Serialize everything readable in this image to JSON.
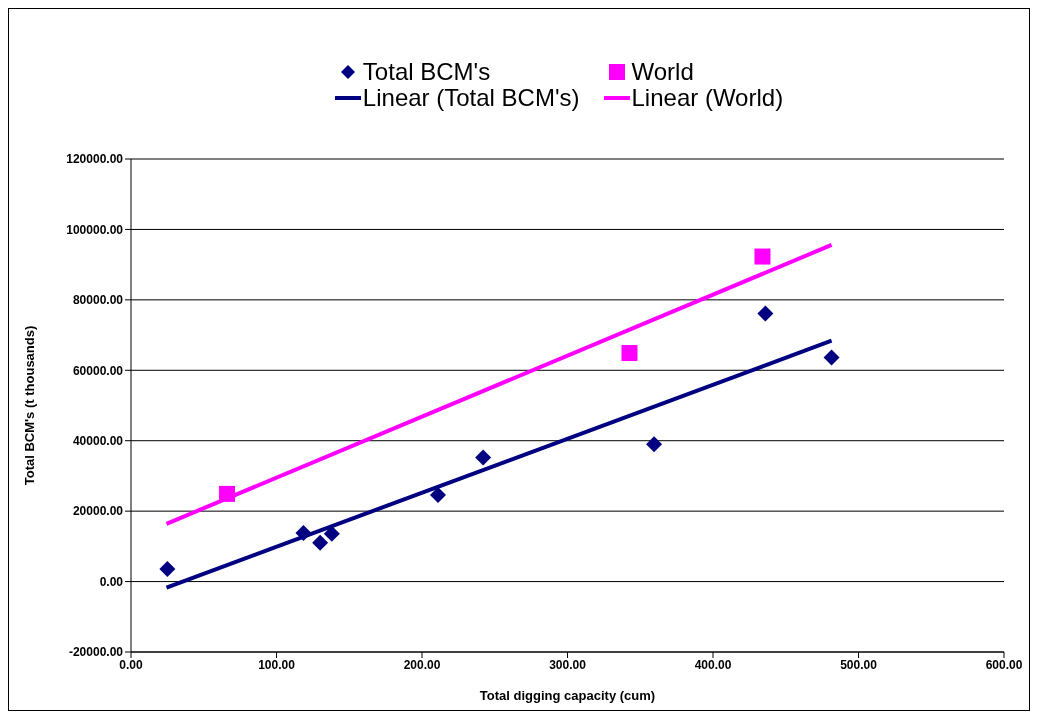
{
  "chart_data": {
    "type": "scatter",
    "xlabel": "Total digging capacity (cum)",
    "ylabel": "Total BCM's (t thousands)",
    "xlim": [
      0,
      600
    ],
    "ylim": [
      -20000,
      120000
    ],
    "xticks": [
      {
        "value": 0,
        "label": "0.00"
      },
      {
        "value": 100,
        "label": "100.00"
      },
      {
        "value": 200,
        "label": "200.00"
      },
      {
        "value": 300,
        "label": "300.00"
      },
      {
        "value": 400,
        "label": "400.00"
      },
      {
        "value": 500,
        "label": "500.00"
      },
      {
        "value": 600,
        "label": "600.00"
      }
    ],
    "yticks": [
      {
        "value": -20000,
        "label": "-20000.00"
      },
      {
        "value": 0,
        "label": "0.00"
      },
      {
        "value": 20000,
        "label": "20000.00"
      },
      {
        "value": 40000,
        "label": "40000.00"
      },
      {
        "value": 60000,
        "label": "60000.00"
      },
      {
        "value": 80000,
        "label": "80000.00"
      },
      {
        "value": 100000,
        "label": "100000.00"
      },
      {
        "value": 120000,
        "label": "120000.00"
      }
    ],
    "grid": "y",
    "legend": "top",
    "series": [
      {
        "name": "Total BCM's",
        "marker": "diamond",
        "color": "#000080",
        "x": [
          25,
          118.5,
          130,
          138,
          211,
          242,
          359.5,
          436,
          481.5
        ],
        "values": [
          3600,
          13800,
          11000,
          13600,
          24600,
          35200,
          39000,
          76100,
          63600
        ]
      },
      {
        "name": "World",
        "marker": "square",
        "color": "#ff00ff",
        "x": [
          66,
          342.6,
          434
        ],
        "values": [
          24900,
          64900,
          92300
        ]
      },
      {
        "name": "Linear (Total BCM's)",
        "type": "line",
        "marker": "none",
        "color": "#000080",
        "x": [
          24.4,
          481.5
        ],
        "values": [
          -1700,
          68400
        ]
      },
      {
        "name": "Linear (World)",
        "type": "line",
        "marker": "none",
        "color": "#ff00ff",
        "x": [
          24.4,
          481.5
        ],
        "values": [
          16400,
          95600
        ]
      }
    ]
  }
}
